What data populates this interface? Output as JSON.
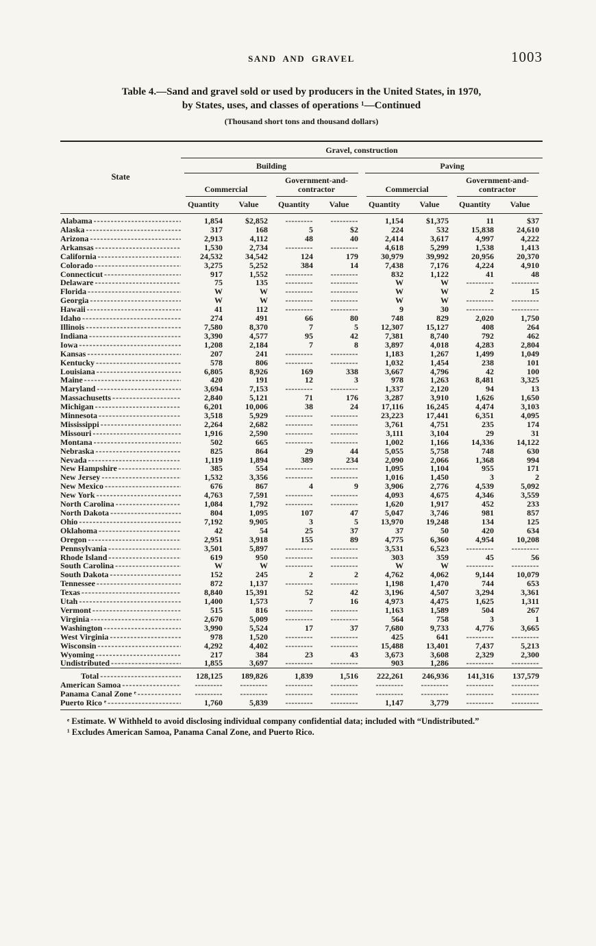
{
  "page": {
    "running_header": "SAND AND GRAVEL",
    "page_number": "1003",
    "title_line1": "Table 4.—Sand and gravel sold or used by producers in the United States, in 1970,",
    "title_line2": "by States, uses, and classes of operations ¹—Continued",
    "subtitle": "(Thousand short tons and thousand dollars)"
  },
  "table": {
    "state_col_header": "State",
    "top_header": "Gravel, construction",
    "group_headers": [
      "Building",
      "Paving"
    ],
    "sub_headers": [
      "Commercial",
      "Government-and-\ncontractor",
      "Commercial",
      "Government-and-\ncontractor"
    ],
    "col_headers": [
      "Quantity",
      "Value",
      "Quantity",
      "Value",
      "Quantity",
      "Value",
      "Quantity",
      "Value"
    ],
    "rows": [
      {
        "state": "Alabama",
        "cells": [
          "1,854",
          "$2,852",
          "",
          "",
          "1,154",
          "$1,375",
          "11",
          "$37"
        ]
      },
      {
        "state": "Alaska",
        "cells": [
          "317",
          "168",
          "5",
          "$2",
          "224",
          "532",
          "15,838",
          "24,610"
        ]
      },
      {
        "state": "Arizona",
        "cells": [
          "2,913",
          "4,112",
          "48",
          "40",
          "2,414",
          "3,617",
          "4,997",
          "4,222"
        ]
      },
      {
        "state": "Arkansas",
        "cells": [
          "1,530",
          "2,734",
          "",
          "",
          "4,618",
          "5,299",
          "1,538",
          "1,413"
        ]
      },
      {
        "state": "California",
        "cells": [
          "24,532",
          "34,542",
          "124",
          "179",
          "30,979",
          "39,992",
          "20,956",
          "20,370"
        ]
      },
      {
        "state": "Colorado",
        "cells": [
          "3,275",
          "5,252",
          "384",
          "14",
          "7,438",
          "7,176",
          "4,224",
          "4,910"
        ]
      },
      {
        "state": "Connecticut",
        "cells": [
          "917",
          "1,552",
          "",
          "",
          "832",
          "1,122",
          "41",
          "48"
        ]
      },
      {
        "state": "Delaware",
        "cells": [
          "75",
          "135",
          "",
          "",
          "W",
          "W",
          "",
          ""
        ]
      },
      {
        "state": "Florida",
        "cells": [
          "W",
          "W",
          "",
          "",
          "W",
          "W",
          "2",
          "15"
        ]
      },
      {
        "state": "Georgia",
        "cells": [
          "W",
          "W",
          "",
          "",
          "W",
          "W",
          "",
          ""
        ]
      },
      {
        "state": "Hawaii",
        "cells": [
          "41",
          "112",
          "",
          "",
          "9",
          "30",
          "",
          ""
        ]
      },
      {
        "state": "Idaho",
        "cells": [
          "274",
          "491",
          "66",
          "80",
          "748",
          "829",
          "2,020",
          "1,750"
        ]
      },
      {
        "state": "Illinois",
        "cells": [
          "7,580",
          "8,370",
          "7",
          "5",
          "12,307",
          "15,127",
          "408",
          "264"
        ]
      },
      {
        "state": "Indiana",
        "cells": [
          "3,390",
          "4,577",
          "95",
          "42",
          "7,381",
          "8,740",
          "792",
          "462"
        ]
      },
      {
        "state": "Iowa",
        "cells": [
          "1,208",
          "2,184",
          "7",
          "8",
          "3,897",
          "4,018",
          "4,283",
          "2,804"
        ]
      },
      {
        "state": "Kansas",
        "cells": [
          "207",
          "241",
          "",
          "",
          "1,183",
          "1,267",
          "1,499",
          "1,049"
        ]
      },
      {
        "state": "Kentucky",
        "cells": [
          "578",
          "806",
          "",
          "",
          "1,032",
          "1,454",
          "238",
          "101"
        ]
      },
      {
        "state": "Louisiana",
        "cells": [
          "6,805",
          "8,926",
          "169",
          "338",
          "3,667",
          "4,796",
          "42",
          "100"
        ]
      },
      {
        "state": "Maine",
        "cells": [
          "420",
          "191",
          "12",
          "3",
          "978",
          "1,263",
          "8,481",
          "3,325"
        ]
      },
      {
        "state": "Maryland",
        "cells": [
          "3,694",
          "7,153",
          "",
          "",
          "1,337",
          "2,120",
          "94",
          "13"
        ]
      },
      {
        "state": "Massachusetts",
        "cells": [
          "2,840",
          "5,121",
          "71",
          "176",
          "3,287",
          "3,910",
          "1,626",
          "1,650"
        ]
      },
      {
        "state": "Michigan",
        "cells": [
          "6,201",
          "10,006",
          "38",
          "24",
          "17,116",
          "16,245",
          "4,474",
          "3,103"
        ]
      },
      {
        "state": "Minnesota",
        "cells": [
          "3,518",
          "5,929",
          "",
          "",
          "23,223",
          "17,441",
          "6,351",
          "4,095"
        ]
      },
      {
        "state": "Mississippi",
        "cells": [
          "2,264",
          "2,682",
          "",
          "",
          "3,761",
          "4,751",
          "235",
          "174"
        ]
      },
      {
        "state": "Missouri",
        "cells": [
          "1,916",
          "2,590",
          "",
          "",
          "3,111",
          "3,104",
          "29",
          "31"
        ]
      },
      {
        "state": "Montana",
        "cells": [
          "502",
          "665",
          "",
          "",
          "1,002",
          "1,166",
          "14,336",
          "14,122"
        ]
      },
      {
        "state": "Nebraska",
        "cells": [
          "825",
          "864",
          "29",
          "44",
          "5,055",
          "5,758",
          "748",
          "630"
        ]
      },
      {
        "state": "Nevada",
        "cells": [
          "1,119",
          "1,894",
          "389",
          "234",
          "2,090",
          "2,066",
          "1,368",
          "994"
        ]
      },
      {
        "state": "New Hampshire",
        "cells": [
          "385",
          "554",
          "",
          "",
          "1,095",
          "1,104",
          "955",
          "171"
        ]
      },
      {
        "state": "New Jersey",
        "cells": [
          "1,532",
          "3,356",
          "",
          "",
          "1,016",
          "1,450",
          "3",
          "2"
        ]
      },
      {
        "state": "New Mexico",
        "cells": [
          "676",
          "867",
          "4",
          "9",
          "3,906",
          "2,776",
          "4,539",
          "5,092"
        ]
      },
      {
        "state": "New York",
        "cells": [
          "4,763",
          "7,591",
          "",
          "",
          "4,093",
          "4,675",
          "4,346",
          "3,559"
        ]
      },
      {
        "state": "North Carolina",
        "cells": [
          "1,084",
          "1,792",
          "",
          "",
          "1,620",
          "1,917",
          "452",
          "233"
        ]
      },
      {
        "state": "North Dakota",
        "cells": [
          "804",
          "1,095",
          "107",
          "47",
          "5,047",
          "3,746",
          "981",
          "857"
        ]
      },
      {
        "state": "Ohio",
        "cells": [
          "7,192",
          "9,905",
          "3",
          "5",
          "13,970",
          "19,248",
          "134",
          "125"
        ]
      },
      {
        "state": "Oklahoma",
        "cells": [
          "42",
          "54",
          "25",
          "37",
          "37",
          "50",
          "420",
          "634"
        ]
      },
      {
        "state": "Oregon",
        "cells": [
          "2,951",
          "3,918",
          "155",
          "89",
          "4,775",
          "6,360",
          "4,954",
          "10,208"
        ]
      },
      {
        "state": "Pennsylvania",
        "cells": [
          "3,501",
          "5,897",
          "",
          "",
          "3,531",
          "6,523",
          "",
          ""
        ]
      },
      {
        "state": "Rhode Island",
        "cells": [
          "619",
          "950",
          "",
          "",
          "303",
          "359",
          "45",
          "56"
        ]
      },
      {
        "state": "South Carolina",
        "cells": [
          "W",
          "W",
          "",
          "",
          "W",
          "W",
          "",
          ""
        ]
      },
      {
        "state": "South Dakota",
        "cells": [
          "152",
          "245",
          "2",
          "2",
          "4,762",
          "4,062",
          "9,144",
          "10,079"
        ]
      },
      {
        "state": "Tennessee",
        "cells": [
          "872",
          "1,137",
          "",
          "",
          "1,198",
          "1,470",
          "744",
          "653"
        ]
      },
      {
        "state": "Texas",
        "cells": [
          "8,840",
          "15,391",
          "52",
          "42",
          "3,196",
          "4,507",
          "3,294",
          "3,361"
        ]
      },
      {
        "state": "Utah",
        "cells": [
          "1,400",
          "1,573",
          "7",
          "16",
          "4,973",
          "4,475",
          "1,625",
          "1,311"
        ]
      },
      {
        "state": "Vermont",
        "cells": [
          "515",
          "816",
          "",
          "",
          "1,163",
          "1,589",
          "504",
          "267"
        ]
      },
      {
        "state": "Virginia",
        "cells": [
          "2,670",
          "5,009",
          "",
          "",
          "564",
          "758",
          "3",
          "1"
        ]
      },
      {
        "state": "Washington",
        "cells": [
          "3,990",
          "5,524",
          "17",
          "37",
          "7,680",
          "9,733",
          "4,776",
          "3,665"
        ]
      },
      {
        "state": "West Virginia",
        "cells": [
          "978",
          "1,520",
          "",
          "",
          "425",
          "641",
          "",
          ""
        ]
      },
      {
        "state": "Wisconsin",
        "cells": [
          "4,292",
          "4,402",
          "",
          "",
          "15,488",
          "13,401",
          "7,437",
          "5,213"
        ]
      },
      {
        "state": "Wyoming",
        "cells": [
          "217",
          "384",
          "23",
          "43",
          "3,673",
          "3,608",
          "2,329",
          "2,300"
        ]
      },
      {
        "state": "Undistributed",
        "cells": [
          "1,855",
          "3,697",
          "",
          "",
          "903",
          "1,286",
          "",
          ""
        ]
      }
    ],
    "summary_rows": [
      {
        "state": "Total",
        "indent": true,
        "cells": [
          "128,125",
          "189,826",
          "1,839",
          "1,516",
          "222,261",
          "246,936",
          "141,316",
          "137,579"
        ]
      },
      {
        "state": "American Samoa",
        "cells": [
          "",
          "",
          "",
          "",
          "",
          "",
          "",
          ""
        ]
      },
      {
        "state": "Panama Canal Zone ᵉ",
        "cells": [
          "",
          "",
          "",
          "",
          "",
          "",
          "",
          ""
        ]
      },
      {
        "state": "Puerto Rico ᵉ",
        "cells": [
          "1,760",
          "5,839",
          "",
          "",
          "1,147",
          "3,779",
          "",
          ""
        ]
      }
    ]
  },
  "footnotes": [
    "ᵉ Estimate.   W  Withheld  to  avoid  disclosing  individual  company  confidential  data;  included  with “Undistributed.”",
    "¹ Excludes American Samoa, Panama Canal Zone, and Puerto Rico."
  ]
}
